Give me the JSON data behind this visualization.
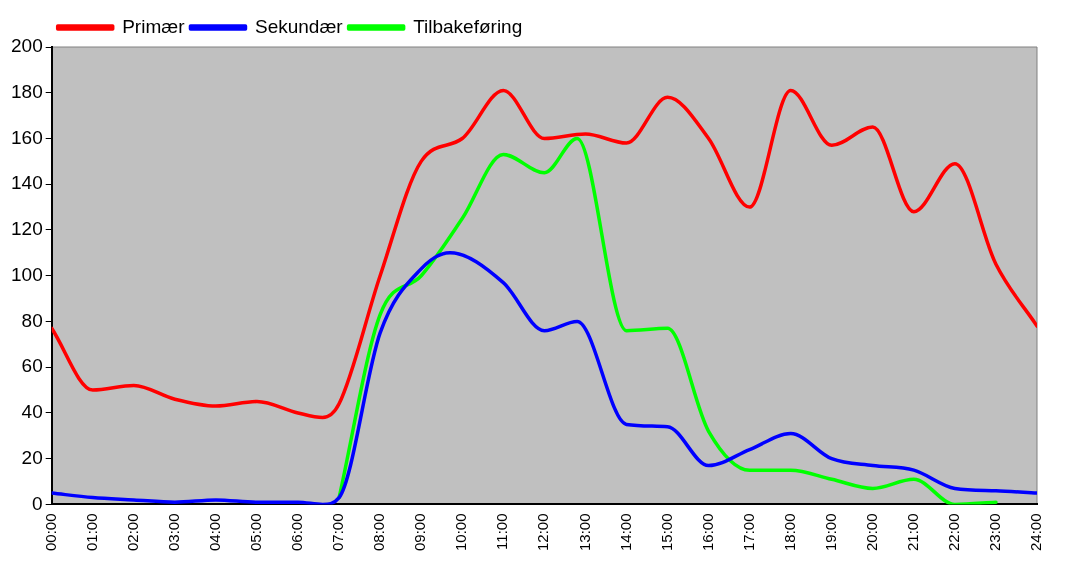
{
  "chart_data": {
    "type": "line",
    "xlim": [
      0,
      24
    ],
    "xticks": [
      {
        "value": 0,
        "label": "00:00"
      },
      {
        "value": 1,
        "label": "01:00"
      },
      {
        "value": 2,
        "label": "02:00"
      },
      {
        "value": 3,
        "label": "03:00"
      },
      {
        "value": 4,
        "label": "04:00"
      },
      {
        "value": 5,
        "label": "05:00"
      },
      {
        "value": 6,
        "label": "06:00"
      },
      {
        "value": 7,
        "label": "07:00"
      },
      {
        "value": 8,
        "label": "08:00"
      },
      {
        "value": 9,
        "label": "09:00"
      },
      {
        "value": 10,
        "label": "10:00"
      },
      {
        "value": 11,
        "label": "11:00"
      },
      {
        "value": 12,
        "label": "12:00"
      },
      {
        "value": 13,
        "label": "13:00"
      },
      {
        "value": 14,
        "label": "14:00"
      },
      {
        "value": 15,
        "label": "15:00"
      },
      {
        "value": 16,
        "label": "16:00"
      },
      {
        "value": 17,
        "label": "17:00"
      },
      {
        "value": 18,
        "label": "18:00"
      },
      {
        "value": 19,
        "label": "19:00"
      },
      {
        "value": 20,
        "label": "20:00"
      },
      {
        "value": 21,
        "label": "21:00"
      },
      {
        "value": 22,
        "label": "22:00"
      },
      {
        "value": 23,
        "label": "23:00"
      },
      {
        "value": 24,
        "label": "24:00"
      }
    ],
    "ylim": [
      0,
      200
    ],
    "yticks": [
      0,
      20,
      40,
      60,
      80,
      100,
      120,
      140,
      160,
      180,
      200
    ],
    "grid": false,
    "legend": "top left",
    "marker": "none",
    "series": [
      {
        "name": "Primær",
        "color": "#ff0000",
        "x": [
          0,
          1,
          2,
          3,
          4,
          5,
          6,
          6.6,
          7,
          8,
          9,
          10,
          11,
          12,
          13,
          14,
          15,
          16,
          17,
          18,
          19,
          20,
          21,
          22,
          23,
          24
        ],
        "values": [
          77,
          50,
          52,
          46,
          43,
          45,
          40,
          38,
          44,
          100,
          150,
          160,
          181,
          160,
          162,
          158,
          178,
          160,
          130,
          181,
          157,
          165,
          128,
          149,
          105,
          78
        ]
      },
      {
        "name": "Sekundær",
        "color": "#0000ff",
        "x": [
          0,
          1,
          2,
          3,
          4,
          5,
          6,
          6.6,
          7,
          8,
          9,
          9.7,
          11,
          12,
          12.8,
          14,
          15,
          16,
          17,
          18,
          19,
          20,
          21,
          22,
          23,
          24
        ],
        "values": [
          5,
          3,
          2,
          1,
          2,
          1,
          1,
          0,
          3,
          75,
          103,
          110,
          97,
          76,
          80,
          35,
          34,
          17,
          24,
          31,
          20,
          17,
          15,
          7,
          6,
          5
        ]
      },
      {
        "name": "Tilbakeføring",
        "color": "#00ff00",
        "x": [
          7,
          8,
          9,
          10,
          11,
          12,
          12.8,
          14,
          15,
          16,
          17,
          18,
          19,
          20,
          21,
          22,
          23
        ],
        "values": [
          3,
          83,
          100,
          125,
          153,
          145,
          160,
          76,
          77,
          32,
          15,
          15,
          11,
          7,
          11,
          0,
          1
        ]
      }
    ]
  }
}
